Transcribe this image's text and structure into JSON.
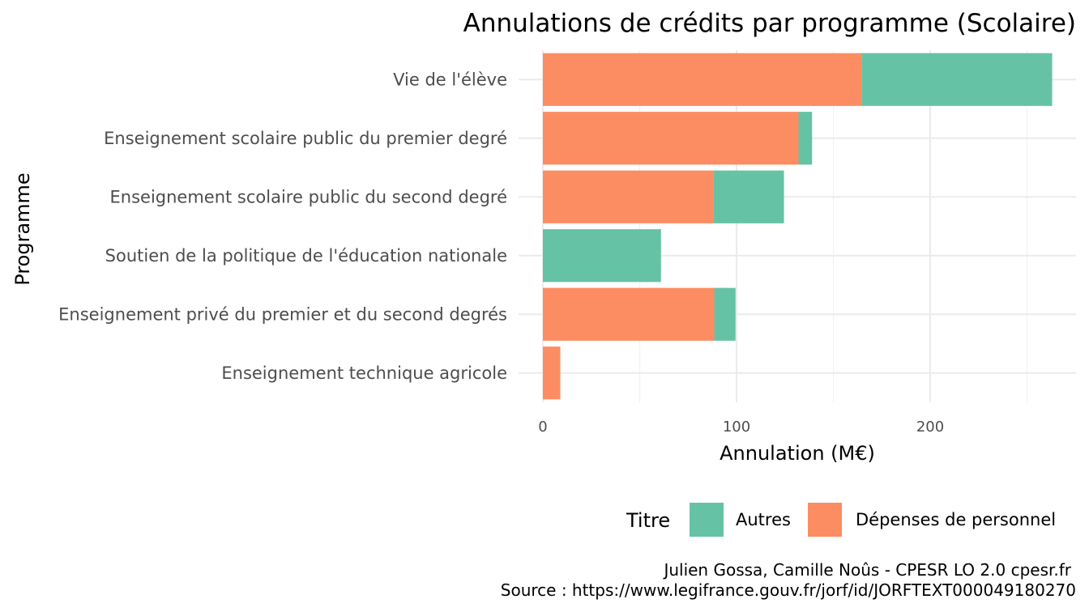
{
  "chart_data": {
    "type": "bar",
    "orientation": "horizontal",
    "stacked": true,
    "title": "Annulations de crédits par programme (Scolaire)",
    "xlabel": "Annulation (M€)",
    "ylabel": "Programme",
    "xlim": [
      0,
      263
    ],
    "xticks": [
      0,
      100,
      200
    ],
    "categories": [
      "Vie de l'élève",
      "Enseignement scolaire public du premier degré",
      "Enseignement scolaire public du second degré",
      "Soutien de la politique de l'éducation nationale",
      "Enseignement privé du premier et du second degrés",
      "Enseignement technique agricole"
    ],
    "series": [
      {
        "name": "Dépenses de personnel",
        "color": "#fc8d62",
        "values": [
          164.5,
          132,
          88,
          0,
          88.5,
          9
        ]
      },
      {
        "name": "Autres",
        "color": "#66c2a5",
        "values": [
          98.5,
          7,
          36.5,
          61,
          11,
          0
        ]
      }
    ],
    "legend": {
      "title": "Titre",
      "position": "bottom",
      "items": [
        {
          "name": "Autres",
          "color": "#66c2a5"
        },
        {
          "name": "Dépenses de personnel",
          "color": "#fc8d62"
        }
      ]
    },
    "grid": true,
    "caption": [
      "Julien Gossa, Camille Noûs - CPESR LO 2.0 cpesr.fr",
      "Source : https://www.legifrance.gouv.fr/jorf/id/JORFTEXT000049180270"
    ]
  }
}
